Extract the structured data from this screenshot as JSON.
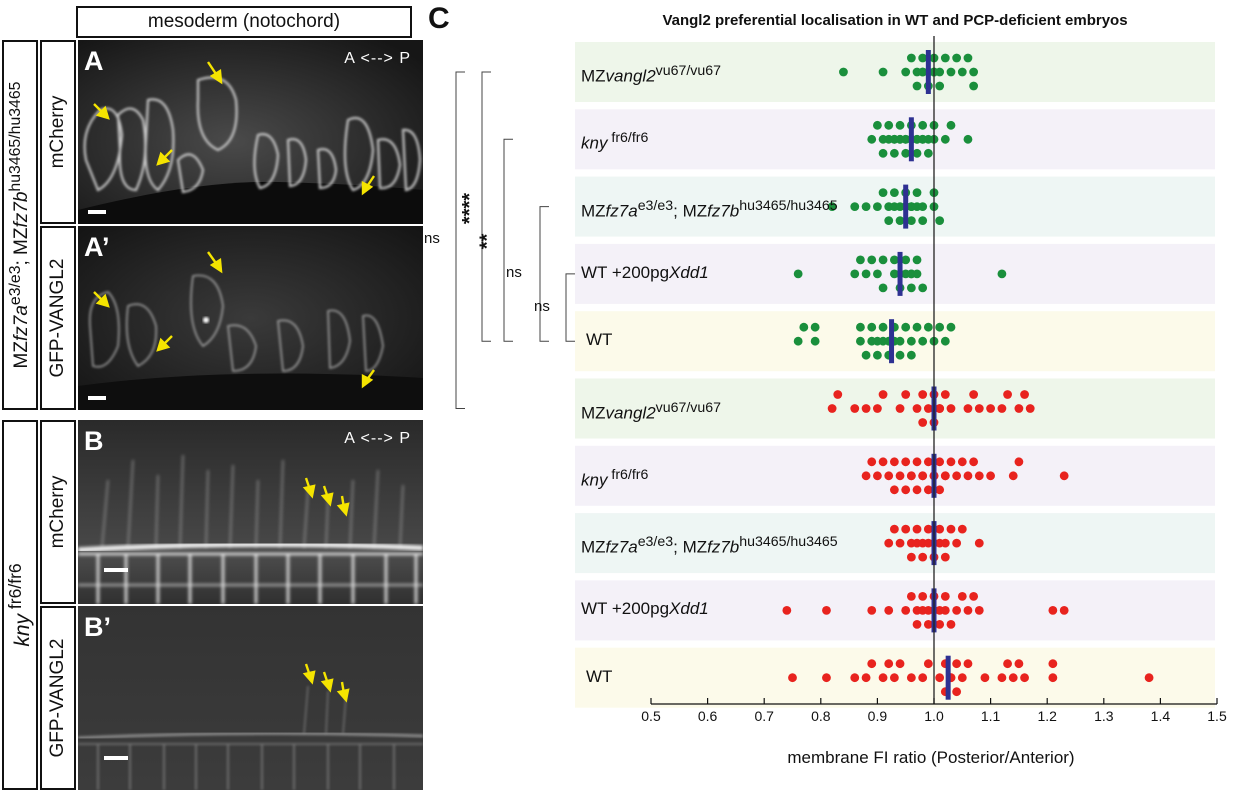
{
  "header": {
    "mesoderm_label": "mesoderm (notochord)"
  },
  "rows": {
    "mz": {
      "genotype_html": "MZ<i>fz7a</i><sup>e3/e3</sup>; MZ<i>fz7b</i><sup>hu3465/hu3465</sup>"
    },
    "kny": {
      "genotype_html": "<i>kny</i><sup> fr6/fr6</sup>"
    }
  },
  "channels": {
    "mcherry": "mCherry",
    "gfp": "GFP-VANGL2"
  },
  "panels": {
    "A": "A",
    "A_prime": "A’",
    "B": "B",
    "B_prime": "B’"
  },
  "axis_marker": "A <--> P",
  "colors": {
    "green": "#1a8f3c",
    "red": "#e8231e",
    "mean": "#2e3192",
    "accent_arrow": "#f5e400"
  },
  "chart_data": {
    "panel_label": "C",
    "type": "scatter",
    "title": "Vangl2 preferential localisation in WT and PCP-deficient embryos",
    "xlabel": "membrane FI ratio (Posterior/Anterior)",
    "xlim": [
      0.5,
      1.5
    ],
    "xticks": [
      "0.5",
      "0.6",
      "0.7",
      "0.8",
      "0.9",
      "1.0",
      "1.1",
      "1.2",
      "1.3",
      "1.4",
      "1.5"
    ],
    "reference_line": 1.0,
    "significance": [
      {
        "label": "ns",
        "from_row": 0,
        "to_row": 5
      },
      {
        "label": "****",
        "from_row": 0,
        "to_row": 4
      },
      {
        "label": "**",
        "from_row": 1,
        "to_row": 4
      },
      {
        "label": "ns",
        "from_row": 2,
        "to_row": 4
      },
      {
        "label": "ns",
        "from_row": 3,
        "to_row": 4
      }
    ],
    "rows": [
      {
        "label_html": "MZ<i>vangl2</i><sup>vu67/vu67</sup>",
        "bg": "#eef6ea",
        "color": "green",
        "mean": 0.99,
        "values": [
          0.84,
          0.91,
          0.95,
          0.96,
          0.97,
          0.97,
          0.98,
          0.98,
          0.98,
          0.99,
          0.99,
          0.99,
          1.0,
          1.0,
          1.0,
          1.0,
          1.01,
          1.01,
          1.02,
          1.03,
          1.04,
          1.05,
          1.06,
          1.07,
          1.07
        ]
      },
      {
        "label_html": "<i>kny</i><sup> fr6/fr6</sup>",
        "bg": "#f4f1f8",
        "color": "green",
        "mean": 0.96,
        "values": [
          0.89,
          0.9,
          0.91,
          0.91,
          0.92,
          0.92,
          0.93,
          0.93,
          0.93,
          0.94,
          0.94,
          0.94,
          0.95,
          0.95,
          0.95,
          0.96,
          0.96,
          0.96,
          0.96,
          0.97,
          0.97,
          0.97,
          0.98,
          0.98,
          0.98,
          0.99,
          0.99,
          1.0,
          1.0,
          1.02,
          1.03,
          1.06
        ]
      },
      {
        "label_html": "MZ<i>fz7a</i><sup>e3/e3</sup>; MZ<i>fz7b</i><sup>hu3465/hu3465</sup>",
        "bg": "#eef6f4",
        "color": "green",
        "mean": 0.95,
        "values": [
          0.82,
          0.86,
          0.88,
          0.9,
          0.91,
          0.92,
          0.92,
          0.93,
          0.93,
          0.94,
          0.94,
          0.95,
          0.95,
          0.95,
          0.96,
          0.96,
          0.96,
          0.97,
          0.97,
          0.98,
          0.98,
          1.0,
          1.0,
          1.01
        ]
      },
      {
        "label_html": "WT +200pg<i>Xdd1</i>",
        "bg": "#f4f1f8",
        "color": "green",
        "mean": 0.94,
        "values": [
          0.76,
          0.86,
          0.87,
          0.88,
          0.89,
          0.9,
          0.91,
          0.91,
          0.93,
          0.93,
          0.94,
          0.94,
          0.95,
          0.95,
          0.96,
          0.96,
          0.96,
          0.97,
          0.97,
          0.98,
          1.12
        ]
      },
      {
        "label_html": "WT",
        "bg": "#fcfaea",
        "color": "green",
        "mean": 0.925,
        "values": [
          0.76,
          0.77,
          0.79,
          0.79,
          0.87,
          0.87,
          0.88,
          0.89,
          0.89,
          0.9,
          0.9,
          0.91,
          0.91,
          0.92,
          0.92,
          0.93,
          0.93,
          0.94,
          0.94,
          0.95,
          0.96,
          0.96,
          0.97,
          0.98,
          0.99,
          1.0,
          1.01,
          1.02,
          1.03
        ]
      },
      {
        "label_html": "MZ<i>vangl2</i><sup>vu67/vu67</sup>",
        "bg": "#eef6ea",
        "color": "red",
        "mean": 1.0,
        "values": [
          0.82,
          0.83,
          0.86,
          0.88,
          0.9,
          0.91,
          0.94,
          0.95,
          0.97,
          0.98,
          0.98,
          0.99,
          1.0,
          1.0,
          1.01,
          1.01,
          1.02,
          1.03,
          1.06,
          1.07,
          1.08,
          1.1,
          1.12,
          1.13,
          1.15,
          1.16,
          1.17
        ]
      },
      {
        "label_html": "<i>kny</i><sup> fr6/fr6</sup>",
        "bg": "#f4f1f8",
        "color": "red",
        "mean": 1.0,
        "values": [
          0.88,
          0.89,
          0.9,
          0.91,
          0.92,
          0.93,
          0.93,
          0.94,
          0.95,
          0.95,
          0.96,
          0.96,
          0.97,
          0.97,
          0.98,
          0.98,
          0.99,
          0.99,
          1.0,
          1.0,
          1.0,
          1.01,
          1.01,
          1.02,
          1.02,
          1.03,
          1.04,
          1.05,
          1.06,
          1.07,
          1.08,
          1.1,
          1.14,
          1.15,
          1.23
        ]
      },
      {
        "label_html": "MZ<i>fz7a</i><sup>e3/e3</sup>; MZ<i>fz7b</i><sup>hu3465/hu3465</sup>",
        "bg": "#eef6f4",
        "color": "red",
        "mean": 1.0,
        "values": [
          0.92,
          0.93,
          0.94,
          0.95,
          0.96,
          0.96,
          0.97,
          0.97,
          0.98,
          0.98,
          0.99,
          0.99,
          1.0,
          1.0,
          1.01,
          1.01,
          1.02,
          1.02,
          1.03,
          1.04,
          1.05,
          1.08
        ]
      },
      {
        "label_html": "WT +200pg<i>Xdd1</i>",
        "bg": "#f4f1f8",
        "color": "red",
        "mean": 1.0,
        "values": [
          0.74,
          0.81,
          0.89,
          0.92,
          0.95,
          0.96,
          0.97,
          0.97,
          0.98,
          0.98,
          0.99,
          0.99,
          1.0,
          1.0,
          1.01,
          1.01,
          1.02,
          1.02,
          1.03,
          1.04,
          1.05,
          1.06,
          1.07,
          1.08,
          1.21,
          1.23
        ]
      },
      {
        "label_html": "WT",
        "bg": "#fcfaea",
        "color": "red",
        "mean": 1.025,
        "values": [
          0.75,
          0.81,
          0.86,
          0.88,
          0.89,
          0.91,
          0.92,
          0.93,
          0.94,
          0.96,
          0.98,
          0.99,
          1.01,
          1.02,
          1.02,
          1.03,
          1.03,
          1.04,
          1.04,
          1.05,
          1.06,
          1.09,
          1.12,
          1.13,
          1.14,
          1.15,
          1.16,
          1.21,
          1.21,
          1.38
        ]
      }
    ]
  }
}
